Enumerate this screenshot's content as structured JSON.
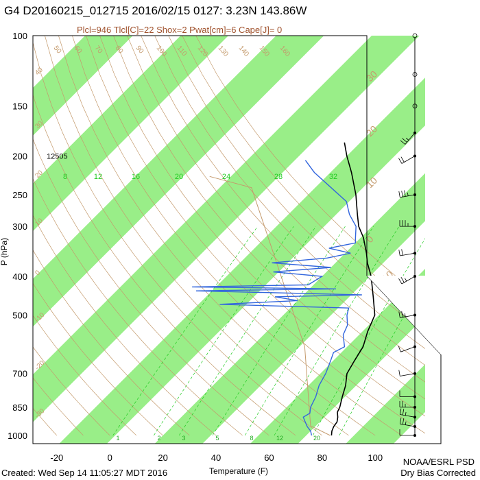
{
  "title": "G4 D20160215_012715 2016/02/15 0127:  3.23N 143.86W",
  "subtitle": "Plcl=946 Tlcl[C]=22 Shox=2 Pwat[cm]=6 Cape[J]= 0",
  "footer": {
    "created": "Created: Wed Sep 14 11:05:27 MDT 2016",
    "org": "NOAA/ESRL PSD",
    "note": "Dry Bias Corrected"
  },
  "colors": {
    "band": "#99ee88",
    "temperature": "#000000",
    "dewpoint": "#3366dd",
    "dry_adiabat": "#c49a6c",
    "mixing_ratio": "#22cc22",
    "parcel": "#c49a6c"
  },
  "chart_data": {
    "type": "skew-t",
    "xlabel": "Temperature (F)",
    "ylabel": "P (hPa)",
    "pressure_ticks": [
      100,
      150,
      200,
      250,
      300,
      400,
      500,
      700,
      850,
      1000
    ],
    "temperature_ticks_F": [
      -20,
      0,
      20,
      40,
      60,
      80,
      100
    ],
    "xlim_F": [
      -29,
      110
    ],
    "ylim_hPa": [
      1000,
      100
    ],
    "y_scale": "log",
    "height_label": {
      "pressure_hPa": 200,
      "text": "12505"
    },
    "mixing_ratio_labels": [
      "8",
      "12",
      "16",
      "20",
      "24",
      "28",
      "32"
    ],
    "mixing_ratio_bottom_labels": [
      "1",
      "2",
      "3",
      "5",
      "8",
      "12",
      "20"
    ],
    "dry_adiabat_labels": [
      "50",
      "60",
      "70",
      "80",
      "90",
      "100",
      "110",
      "120",
      "130",
      "140",
      "150",
      "160"
    ],
    "skewed_isotherm_labels": [
      "30",
      "20",
      "10",
      "0",
      "-10",
      "-20",
      "-30"
    ],
    "theta_left_labels": [
      "40",
      "30",
      "20",
      "10",
      "0",
      "-10",
      "-20",
      "-30"
    ],
    "temperature_profile": [
      {
        "p": 1000,
        "t": 83.5
      },
      {
        "p": 975,
        "t": 82
      },
      {
        "p": 950,
        "t": 81
      },
      {
        "p": 925,
        "t": 80.5
      },
      {
        "p": 900,
        "t": 79
      },
      {
        "p": 875,
        "t": 77
      },
      {
        "p": 850,
        "t": 76
      },
      {
        "p": 800,
        "t": 73
      },
      {
        "p": 750,
        "t": 70
      },
      {
        "p": 700,
        "t": 66
      },
      {
        "p": 650,
        "t": 64
      },
      {
        "p": 600,
        "t": 62
      },
      {
        "p": 550,
        "t": 58
      },
      {
        "p": 500,
        "t": 54.5
      },
      {
        "p": 450,
        "t": 47
      },
      {
        "p": 400,
        "t": 38.5
      },
      {
        "p": 370,
        "t": 32
      },
      {
        "p": 350,
        "t": 28
      },
      {
        "p": 320,
        "t": 21
      },
      {
        "p": 300,
        "t": 15
      },
      {
        "p": 280,
        "t": 10
      },
      {
        "p": 250,
        "t": 2
      },
      {
        "p": 220,
        "t": -8
      },
      {
        "p": 200,
        "t": -16
      },
      {
        "p": 185,
        "t": -22
      }
    ],
    "dewpoint_profile": [
      {
        "p": 1000,
        "t": 76
      },
      {
        "p": 975,
        "t": 74
      },
      {
        "p": 950,
        "t": 71
      },
      {
        "p": 920,
        "t": 68
      },
      {
        "p": 900,
        "t": 66
      },
      {
        "p": 880,
        "t": 67
      },
      {
        "p": 850,
        "t": 65
      },
      {
        "p": 800,
        "t": 63
      },
      {
        "p": 750,
        "t": 60
      },
      {
        "p": 700,
        "t": 58
      },
      {
        "p": 650,
        "t": 55
      },
      {
        "p": 620,
        "t": 53
      },
      {
        "p": 600,
        "t": 55
      },
      {
        "p": 560,
        "t": 50
      },
      {
        "p": 530,
        "t": 48
      },
      {
        "p": 500,
        "t": 44
      },
      {
        "p": 480,
        "t": 42
      },
      {
        "p": 470,
        "t": -8
      },
      {
        "p": 460,
        "t": 20
      },
      {
        "p": 450,
        "t": 10
      },
      {
        "p": 445,
        "t": 42
      },
      {
        "p": 435,
        "t": -22
      },
      {
        "p": 430,
        "t": 30
      },
      {
        "p": 425,
        "t": -25
      },
      {
        "p": 420,
        "t": 18
      },
      {
        "p": 400,
        "t": 20
      },
      {
        "p": 390,
        "t": 0
      },
      {
        "p": 380,
        "t": 20
      },
      {
        "p": 370,
        "t": -4
      },
      {
        "p": 360,
        "t": 15
      },
      {
        "p": 350,
        "t": 22
      },
      {
        "p": 340,
        "t": 12
      },
      {
        "p": 330,
        "t": 20
      },
      {
        "p": 320,
        "t": 18
      },
      {
        "p": 300,
        "t": 14
      },
      {
        "p": 280,
        "t": 7
      },
      {
        "p": 260,
        "t": 1
      },
      {
        "p": 240,
        "t": -10
      },
      {
        "p": 220,
        "t": -22
      },
      {
        "p": 205,
        "t": -30
      }
    ],
    "wind_barbs_profile": [
      {
        "p": 1000,
        "dir": 90,
        "spd": 10
      },
      {
        "p": 950,
        "dir": 100,
        "spd": 15
      },
      {
        "p": 900,
        "dir": 100,
        "spd": 15
      },
      {
        "p": 850,
        "dir": 90,
        "spd": 15
      },
      {
        "p": 800,
        "dir": 90,
        "spd": 10
      },
      {
        "p": 700,
        "dir": 80,
        "spd": 10
      },
      {
        "p": 600,
        "dir": 70,
        "spd": 10
      },
      {
        "p": 500,
        "dir": 80,
        "spd": 15
      },
      {
        "p": 400,
        "dir": 60,
        "spd": 15
      },
      {
        "p": 350,
        "dir": 80,
        "spd": 20
      },
      {
        "p": 300,
        "dir": 90,
        "spd": 25
      },
      {
        "p": 250,
        "dir": 80,
        "spd": 25
      },
      {
        "p": 200,
        "dir": 60,
        "spd": 20
      },
      {
        "p": 175,
        "dir": 40,
        "spd": 15
      },
      {
        "p": 150,
        "dir": 0,
        "spd": 0
      },
      {
        "p": 125,
        "dir": 0,
        "spd": 0
      },
      {
        "p": 100,
        "dir": 0,
        "spd": 0
      }
    ]
  }
}
